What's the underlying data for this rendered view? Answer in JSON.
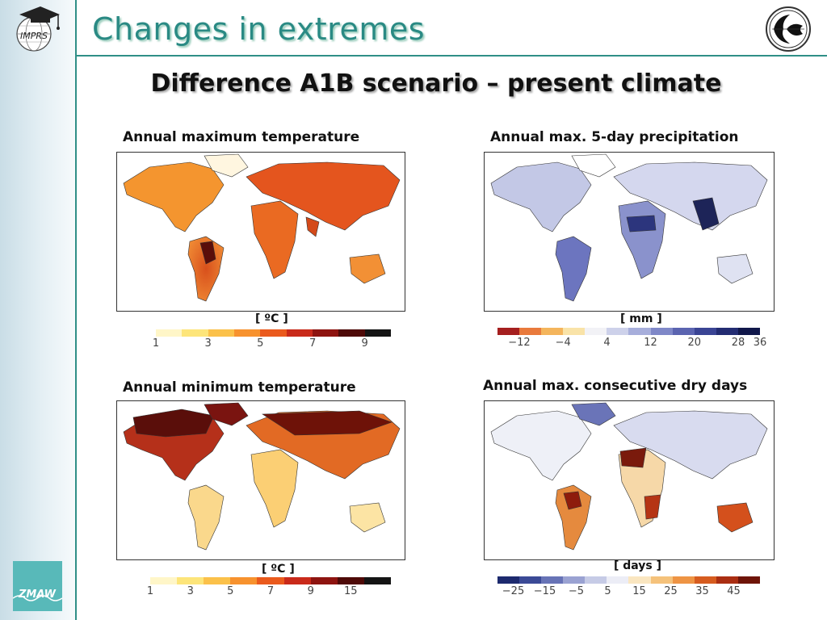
{
  "slide": {
    "title": "Changes in extremes",
    "subtitle": "Difference A1B scenario – present climate"
  },
  "logos": {
    "imprs_text": "IMPRS",
    "zmaw_text": "ZMAW"
  },
  "panels": [
    {
      "title": "Annual maximum temperature",
      "unit": "[ ºC ]",
      "colorbar": [
        "#fff6c8",
        "#fde57a",
        "#fbc14a",
        "#f7922e",
        "#ea5a1d",
        "#c92a1a",
        "#8e1410",
        "#4e0a08",
        "#141414"
      ],
      "ticks": [
        "1",
        "3",
        "5",
        "7",
        "9"
      ]
    },
    {
      "title": "Annual max. 5-day precipitation",
      "unit": "[ mm ]",
      "colorbar": [
        "#a51f1f",
        "#e97a3c",
        "#f4b55c",
        "#f9e3a8",
        "#f2f2f6",
        "#cdd1ea",
        "#a7aedb",
        "#7f88c8",
        "#5b64b0",
        "#3a4494",
        "#232c72",
        "#10174a"
      ],
      "ticks": [
        "−12",
        "−4",
        "4",
        "12",
        "20",
        "28",
        "36"
      ]
    },
    {
      "title": "Annual minimum temperature",
      "unit": "[ ºC ]",
      "colorbar": [
        "#fff6c8",
        "#fde57a",
        "#fbc14a",
        "#f7922e",
        "#ea5a1d",
        "#c92a1a",
        "#8e1410",
        "#4e0a08",
        "#141414"
      ],
      "ticks": [
        "1",
        "3",
        "5",
        "7",
        "9",
        "15"
      ]
    },
    {
      "title": "Annual max. consecutive dry days",
      "unit": "[ days ]",
      "colorbar": [
        "#1d2a6e",
        "#3b4a96",
        "#6773b6",
        "#9aa2d2",
        "#c6cbe6",
        "#ecedf6",
        "#fae6c0",
        "#f5c27b",
        "#ee9444",
        "#d65c1f",
        "#aa2e12",
        "#6e1408"
      ],
      "ticks": [
        "−25",
        "−15",
        "−5",
        "5",
        "15",
        "25",
        "35",
        "45"
      ]
    }
  ]
}
